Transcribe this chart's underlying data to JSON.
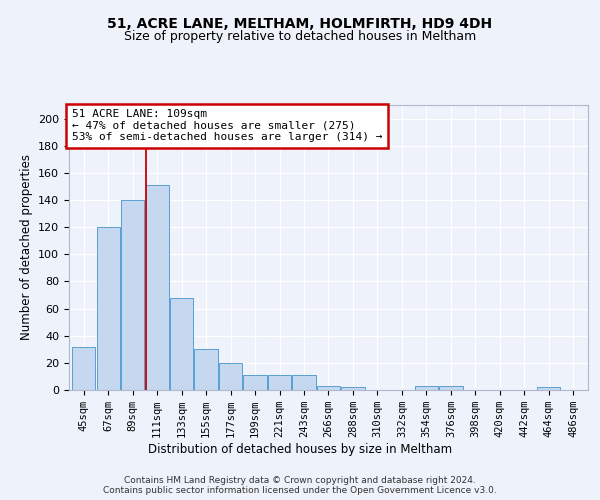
{
  "title1": "51, ACRE LANE, MELTHAM, HOLMFIRTH, HD9 4DH",
  "title2": "Size of property relative to detached houses in Meltham",
  "xlabel": "Distribution of detached houses by size in Meltham",
  "ylabel": "Number of detached properties",
  "categories": [
    "45sqm",
    "67sqm",
    "89sqm",
    "111sqm",
    "133sqm",
    "155sqm",
    "177sqm",
    "199sqm",
    "221sqm",
    "243sqm",
    "266sqm",
    "288sqm",
    "310sqm",
    "332sqm",
    "354sqm",
    "376sqm",
    "398sqm",
    "420sqm",
    "442sqm",
    "464sqm",
    "486sqm"
  ],
  "values": [
    32,
    120,
    140,
    151,
    68,
    30,
    20,
    11,
    11,
    11,
    3,
    2,
    0,
    0,
    3,
    3,
    0,
    0,
    0,
    2,
    0
  ],
  "bar_color": "#c5d8f0",
  "bar_edge_color": "#5a9fd4",
  "vline_x": 2.55,
  "vline_color": "#cc0000",
  "ylim": [
    0,
    210
  ],
  "yticks": [
    0,
    20,
    40,
    60,
    80,
    100,
    120,
    140,
    160,
    180,
    200
  ],
  "annotation_line1": "51 ACRE LANE: 109sqm",
  "annotation_line2": "← 47% of detached houses are smaller (275)",
  "annotation_line3": "53% of semi-detached houses are larger (314) →",
  "annotation_box_color": "#ffffff",
  "annotation_box_edge": "#cc0000",
  "footer": "Contains HM Land Registry data © Crown copyright and database right 2024.\nContains public sector information licensed under the Open Government Licence v3.0.",
  "background_color": "#eef2fa",
  "grid_color": "#ffffff",
  "title1_fontsize": 10,
  "title2_fontsize": 9,
  "xlabel_fontsize": 8.5,
  "ylabel_fontsize": 8.5,
  "footer_fontsize": 6.5,
  "tick_fontsize": 7.5,
  "ytick_fontsize": 8
}
